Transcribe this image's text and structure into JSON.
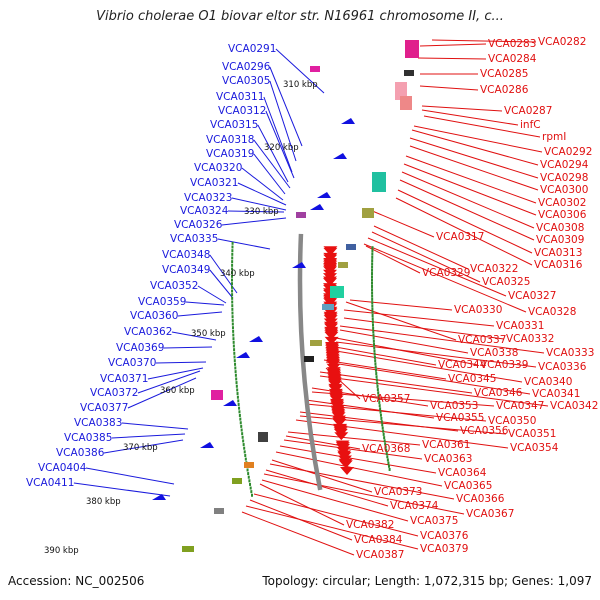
{
  "title": "Vibrio cholerae O1 biovar eltor str. N16961 chromosome II, c...",
  "footer": {
    "accession": "Accession: NC_002506",
    "topology": "Topology: circular; Length: 1,072,315 bp; Genes: 1,097"
  },
  "colors": {
    "left_labels": "#1a1adc",
    "right_labels": "#e01010",
    "backbone": "#888888",
    "tick_dots": "#2e8b2e"
  },
  "scale_labels": [
    "310 kbp",
    "320 kbp",
    "330 kbp",
    "340 kbp",
    "350 kbp",
    "360 kbp",
    "370 kbp",
    "380 kbp",
    "390 kbp"
  ],
  "left_genes": [
    "VCA0291",
    "VCA0296",
    "VCA0305",
    "VCA0311",
    "VCA0312",
    "VCA0315",
    "VCA0318",
    "VCA0319",
    "VCA0320",
    "VCA0321",
    "VCA0323",
    "VCA0324",
    "VCA0326",
    "VCA0335",
    "VCA0348",
    "VCA0349",
    "VCA0352",
    "VCA0359",
    "VCA0360",
    "VCA0362",
    "VCA0369",
    "VCA0370",
    "VCA0371",
    "VCA0372",
    "VCA0377",
    "VCA0383",
    "VCA0385",
    "VCA0386",
    "VCA0404",
    "VCA0411"
  ],
  "right_genes": [
    "VCA0283",
    "VCA0282",
    "VCA0284",
    "VCA0285",
    "VCA0286",
    "VCA0287",
    "infC",
    "rpmI",
    "VCA0292",
    "VCA0294",
    "VCA0298",
    "VCA0300",
    "VCA0302",
    "VCA0306",
    "VCA0308",
    "VCA0317",
    "VCA0309",
    "VCA0313",
    "VCA0316",
    "VCA0322",
    "VCA0329",
    "VCA0325",
    "VCA0327",
    "VCA0330",
    "VCA0328",
    "VCA0331",
    "VCA0337",
    "VCA0332",
    "VCA0333",
    "VCA0338",
    "VCA0339",
    "VCA0336",
    "VCA0344",
    "VCA0340",
    "VCA0345",
    "VCA0341",
    "VCA0357",
    "VCA0346",
    "VCA0342",
    "VCA0353",
    "VCA0347",
    "VCA0355",
    "VCA0350",
    "VCA0356",
    "VCA0351",
    "VCA0354",
    "VCA0361",
    "VCA0368",
    "VCA0363",
    "VCA0364",
    "VCA0365",
    "VCA0373",
    "VCA0366",
    "VCA0374",
    "VCA0367",
    "VCA0375",
    "VCA0382",
    "VCA0376",
    "VCA0384",
    "VCA0379",
    "VCA0387"
  ]
}
